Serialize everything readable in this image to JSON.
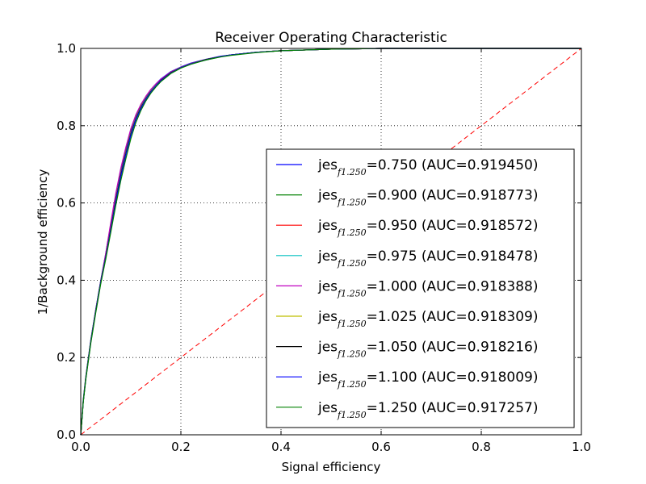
{
  "chart_data": {
    "type": "line",
    "title": "Receiver Operating Characteristic",
    "xlabel": "Signal efficiency",
    "ylabel": "1/Background efficiency",
    "xlim": [
      0.0,
      1.0
    ],
    "ylim": [
      0.0,
      1.0
    ],
    "xticks": [
      "0.0",
      "0.2",
      "0.4",
      "0.6",
      "0.8",
      "1.0"
    ],
    "yticks": [
      "0.0",
      "0.2",
      "0.4",
      "0.6",
      "0.8",
      "1.0"
    ],
    "grid": true,
    "legend_position": "lower-right",
    "diagonal": {
      "color": "#ff0000",
      "style": "dashed",
      "x": [
        0,
        1
      ],
      "y": [
        0,
        1
      ]
    },
    "x": [
      0.0,
      0.005,
      0.01,
      0.02,
      0.03,
      0.04,
      0.05,
      0.06,
      0.07,
      0.08,
      0.09,
      0.1,
      0.11,
      0.12,
      0.13,
      0.14,
      0.15,
      0.16,
      0.18,
      0.2,
      0.22,
      0.25,
      0.28,
      0.3,
      0.35,
      0.4,
      0.45,
      0.5,
      0.55,
      0.6,
      0.7,
      0.8,
      0.9,
      1.0
    ],
    "series": [
      {
        "legend_main": "jes",
        "legend_sub": "f1.250",
        "legend_value": "=0.750 (AUC=0.919450)",
        "color": "#0000ff",
        "values": [
          0.0,
          0.09,
          0.15,
          0.245,
          0.325,
          0.4,
          0.47,
          0.545,
          0.62,
          0.685,
          0.74,
          0.79,
          0.826,
          0.853,
          0.875,
          0.893,
          0.908,
          0.921,
          0.94,
          0.952,
          0.962,
          0.972,
          0.98,
          0.983,
          0.99,
          0.994,
          0.996,
          0.998,
          0.999,
          1.0,
          1.0,
          1.0,
          1.0,
          1.0
        ]
      },
      {
        "legend_main": "jes",
        "legend_sub": "f1.250",
        "legend_value": "=0.900 (AUC=0.918773)",
        "color": "#008000",
        "values": [
          0.0,
          0.088,
          0.148,
          0.243,
          0.323,
          0.398,
          0.466,
          0.538,
          0.612,
          0.678,
          0.733,
          0.784,
          0.822,
          0.85,
          0.872,
          0.891,
          0.906,
          0.919,
          0.939,
          0.951,
          0.961,
          0.971,
          0.979,
          0.983,
          0.99,
          0.994,
          0.996,
          0.998,
          0.999,
          1.0,
          1.0,
          1.0,
          1.0,
          1.0
        ]
      },
      {
        "legend_main": "jes",
        "legend_sub": "f1.250",
        "legend_value": "=0.950 (AUC=0.918572)",
        "color": "#ff0000",
        "values": [
          0.0,
          0.087,
          0.147,
          0.242,
          0.322,
          0.397,
          0.464,
          0.536,
          0.61,
          0.676,
          0.731,
          0.782,
          0.821,
          0.849,
          0.871,
          0.89,
          0.905,
          0.918,
          0.938,
          0.951,
          0.961,
          0.971,
          0.979,
          0.983,
          0.99,
          0.994,
          0.996,
          0.998,
          0.999,
          1.0,
          1.0,
          1.0,
          1.0,
          1.0
        ]
      },
      {
        "legend_main": "jes",
        "legend_sub": "f1.250",
        "legend_value": "=0.975 (AUC=0.918478)",
        "color": "#00bfbf",
        "values": [
          0.0,
          0.087,
          0.147,
          0.242,
          0.321,
          0.396,
          0.463,
          0.535,
          0.609,
          0.675,
          0.73,
          0.781,
          0.82,
          0.848,
          0.871,
          0.89,
          0.905,
          0.918,
          0.938,
          0.951,
          0.961,
          0.971,
          0.979,
          0.983,
          0.99,
          0.994,
          0.996,
          0.998,
          0.999,
          1.0,
          1.0,
          1.0,
          1.0,
          1.0
        ]
      },
      {
        "legend_main": "jes",
        "legend_sub": "f1.250",
        "legend_value": "=1.000 (AUC=0.918388)",
        "color": "#bf00bf",
        "values": [
          0.0,
          0.086,
          0.146,
          0.241,
          0.321,
          0.396,
          0.47,
          0.55,
          0.625,
          0.69,
          0.744,
          0.792,
          0.828,
          0.855,
          0.876,
          0.894,
          0.908,
          0.92,
          0.939,
          0.951,
          0.961,
          0.971,
          0.979,
          0.983,
          0.99,
          0.994,
          0.996,
          0.998,
          0.999,
          1.0,
          1.0,
          1.0,
          1.0,
          1.0
        ]
      },
      {
        "legend_main": "jes",
        "legend_sub": "f1.250",
        "legend_value": "=1.025 (AUC=0.918309)",
        "color": "#bfbf00",
        "values": [
          0.0,
          0.086,
          0.146,
          0.241,
          0.32,
          0.395,
          0.462,
          0.534,
          0.607,
          0.673,
          0.728,
          0.779,
          0.818,
          0.847,
          0.87,
          0.889,
          0.904,
          0.917,
          0.937,
          0.95,
          0.96,
          0.971,
          0.979,
          0.983,
          0.99,
          0.994,
          0.996,
          0.998,
          0.999,
          1.0,
          1.0,
          1.0,
          1.0,
          1.0
        ]
      },
      {
        "legend_main": "jes",
        "legend_sub": "f1.250",
        "legend_value": "=1.050 (AUC=0.918216)",
        "color": "#000000",
        "values": [
          0.0,
          0.086,
          0.145,
          0.24,
          0.32,
          0.395,
          0.461,
          0.533,
          0.606,
          0.672,
          0.727,
          0.778,
          0.817,
          0.846,
          0.869,
          0.888,
          0.903,
          0.917,
          0.937,
          0.95,
          0.96,
          0.971,
          0.979,
          0.983,
          0.99,
          0.994,
          0.996,
          0.998,
          0.999,
          1.0,
          1.0,
          1.0,
          1.0,
          1.0
        ]
      },
      {
        "legend_main": "jes",
        "legend_sub": "f1.250",
        "legend_value": "=1.100 (AUC=0.918009)",
        "color": "#0000ff",
        "values": [
          0.0,
          0.085,
          0.144,
          0.239,
          0.319,
          0.394,
          0.459,
          0.53,
          0.602,
          0.668,
          0.724,
          0.775,
          0.815,
          0.844,
          0.868,
          0.887,
          0.903,
          0.916,
          0.936,
          0.95,
          0.96,
          0.97,
          0.979,
          0.983,
          0.99,
          0.994,
          0.996,
          0.998,
          0.999,
          1.0,
          1.0,
          1.0,
          1.0,
          1.0
        ]
      },
      {
        "legend_main": "jes",
        "legend_sub": "f1.250",
        "legend_value": "=1.250 (AUC=0.917257)",
        "color": "#008000",
        "values": [
          0.0,
          0.084,
          0.142,
          0.236,
          0.316,
          0.391,
          0.455,
          0.524,
          0.594,
          0.658,
          0.714,
          0.766,
          0.808,
          0.839,
          0.864,
          0.884,
          0.9,
          0.914,
          0.935,
          0.949,
          0.959,
          0.97,
          0.978,
          0.982,
          0.989,
          0.994,
          0.996,
          0.998,
          0.999,
          1.0,
          1.0,
          1.0,
          1.0,
          1.0
        ]
      }
    ]
  }
}
